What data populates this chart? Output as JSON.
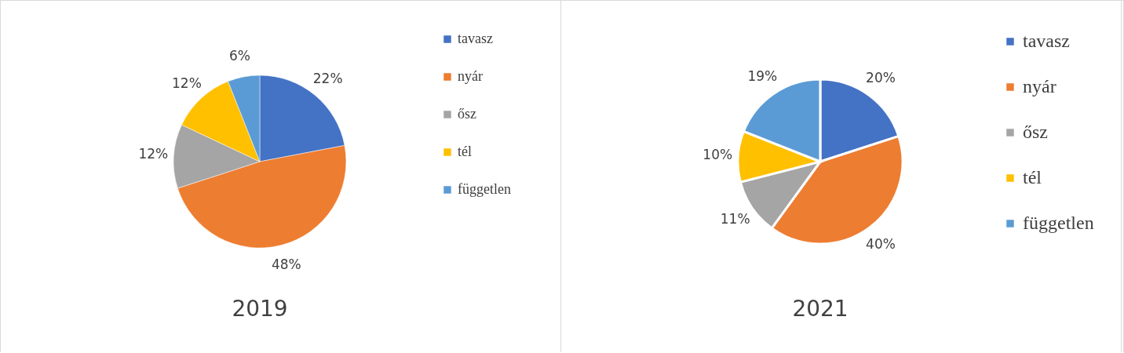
{
  "chart_data": [
    {
      "type": "pie",
      "title": "2019",
      "categories": [
        "tavasz",
        "nyár",
        "ősz",
        "tél",
        "független"
      ],
      "values": [
        22,
        48,
        12,
        12,
        6
      ],
      "colors": [
        "#4472c4",
        "#ed7d31",
        "#a5a5a5",
        "#ffc000",
        "#5b9bd5"
      ],
      "value_labels": [
        "22%",
        "48%",
        "12%",
        "12%",
        "6%"
      ],
      "legend": "right"
    },
    {
      "type": "pie",
      "title": "2021",
      "categories": [
        "tavasz",
        "nyár",
        "ősz",
        "tél",
        "független"
      ],
      "values": [
        20,
        40,
        11,
        10,
        19
      ],
      "colors": [
        "#4472c4",
        "#ed7d31",
        "#a5a5a5",
        "#ffc000",
        "#5b9bd5"
      ],
      "value_labels": [
        "20%",
        "40%",
        "11%",
        "10%",
        "19%"
      ],
      "legend": "right"
    }
  ]
}
